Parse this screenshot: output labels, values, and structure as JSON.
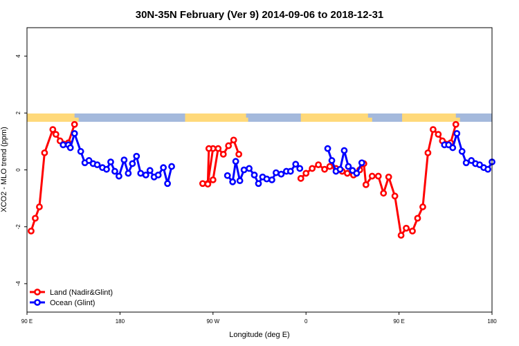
{
  "chart_data": {
    "type": "line",
    "title": "30N-35N February (Ver 9)   2014-09-06 to 2018-12-31",
    "xlabel": "Longitude (deg E)",
    "ylabel": "XCO2 - MLO trend (ppm)",
    "xlim": [
      90,
      540
    ],
    "ylim": [
      -5,
      5
    ],
    "x_ticks": [
      {
        "value": 90,
        "label": "90 E"
      },
      {
        "value": 180,
        "label": "180"
      },
      {
        "value": 270,
        "label": "90 W"
      },
      {
        "value": 360,
        "label": "0"
      },
      {
        "value": 450,
        "label": "90 E"
      },
      {
        "value": 540,
        "label": "180"
      }
    ],
    "y_ticks": [
      -4,
      -2,
      0,
      2,
      4
    ],
    "land_color": "#ffd97a",
    "ocean_color": "#a4b9dc",
    "grid": false,
    "legend_position": "bottom-left",
    "series": [
      {
        "name": "Land (Nadir&Glint)",
        "color": "#ff0000",
        "segments": [
          [
            [
              94,
              -2.15
            ],
            [
              98,
              -1.7
            ],
            [
              102,
              -1.3
            ],
            [
              107,
              0.6
            ],
            [
              115,
              1.42
            ],
            [
              118,
              1.25
            ],
            [
              122,
              1.02
            ],
            [
              130,
              0.95
            ],
            [
              136,
              1.6
            ]
          ],
          [
            [
              270,
              0.75
            ],
            [
              265,
              -0.48
            ],
            [
              266,
              0.75
            ]
          ],
          [
            [
              260,
              -0.48
            ],
            [
              265,
              -0.5
            ],
            [
              270,
              -0.35
            ],
            [
              275,
              0.75
            ],
            [
              280,
              0.55
            ],
            [
              285,
              0.85
            ],
            [
              290,
              1.05
            ],
            [
              295,
              0.55
            ]
          ],
          [
            [
              355,
              -0.3
            ],
            [
              360,
              -0.12
            ],
            [
              366,
              0.05
            ],
            [
              372,
              0.18
            ],
            [
              378,
              0.02
            ],
            [
              383,
              0.12
            ],
            [
              389,
              0.05
            ],
            [
              395,
              -0.05
            ],
            [
              400,
              -0.12
            ],
            [
              406,
              -0.18
            ],
            [
              412,
              0.0
            ],
            [
              416,
              0.22
            ],
            [
              418,
              -0.52
            ],
            [
              424,
              -0.22
            ],
            [
              430,
              -0.22
            ],
            [
              435,
              -0.82
            ],
            [
              440,
              -0.25
            ],
            [
              446,
              -0.92
            ],
            [
              452,
              -2.3
            ],
            [
              457,
              -2.05
            ],
            [
              463,
              -2.15
            ],
            [
              468,
              -1.7
            ],
            [
              473,
              -1.3
            ],
            [
              478,
              0.6
            ],
            [
              483,
              1.42
            ],
            [
              488,
              1.25
            ],
            [
              492,
              1.02
            ],
            [
              500,
              0.95
            ],
            [
              505,
              1.6
            ]
          ]
        ]
      },
      {
        "name": "Ocean (Glint)",
        "color": "#0000ff",
        "segments": [
          [
            [
              125,
              0.88
            ],
            [
              130,
              0.88
            ],
            [
              132,
              0.78
            ],
            [
              136,
              1.28
            ],
            [
              142,
              0.65
            ],
            [
              146,
              0.25
            ],
            [
              150,
              0.33
            ],
            [
              154,
              0.22
            ],
            [
              158,
              0.18
            ],
            [
              163,
              0.08
            ],
            [
              167,
              0.02
            ],
            [
              171,
              0.28
            ],
            [
              175,
              -0.05
            ],
            [
              179,
              -0.22
            ],
            [
              184,
              0.35
            ],
            [
              188,
              -0.12
            ],
            [
              192,
              0.22
            ],
            [
              196,
              0.48
            ],
            [
              200,
              -0.12
            ],
            [
              205,
              -0.18
            ],
            [
              209,
              -0.02
            ],
            [
              213,
              -0.25
            ],
            [
              217,
              -0.18
            ],
            [
              222,
              0.08
            ],
            [
              226,
              -0.48
            ],
            [
              230,
              0.12
            ]
          ],
          [
            [
              284,
              -0.2
            ],
            [
              289,
              -0.42
            ],
            [
              292,
              0.3
            ],
            [
              296,
              -0.38
            ],
            [
              300,
              0.0
            ],
            [
              305,
              0.05
            ],
            [
              310,
              -0.18
            ],
            [
              314,
              -0.48
            ],
            [
              318,
              -0.25
            ],
            [
              322,
              -0.32
            ],
            [
              327,
              -0.35
            ],
            [
              331,
              -0.1
            ],
            [
              336,
              -0.15
            ],
            [
              341,
              -0.05
            ],
            [
              345,
              -0.05
            ],
            [
              350,
              0.2
            ],
            [
              354,
              0.05
            ]
          ],
          [
            [
              381,
              0.75
            ],
            [
              385,
              0.33
            ],
            [
              389,
              -0.05
            ],
            [
              393,
              0.02
            ],
            [
              397,
              0.68
            ],
            [
              401,
              0.12
            ],
            [
              405,
              -0.02
            ],
            [
              409,
              -0.12
            ],
            [
              414,
              0.25
            ]
          ],
          [
            [
              494,
              0.88
            ],
            [
              498,
              0.88
            ],
            [
              502,
              0.78
            ],
            [
              506,
              1.28
            ],
            [
              511,
              0.65
            ],
            [
              515,
              0.25
            ],
            [
              520,
              0.33
            ],
            [
              524,
              0.22
            ],
            [
              528,
              0.18
            ],
            [
              532,
              0.08
            ],
            [
              536,
              0.02
            ],
            [
              540,
              0.28
            ]
          ]
        ]
      }
    ]
  }
}
